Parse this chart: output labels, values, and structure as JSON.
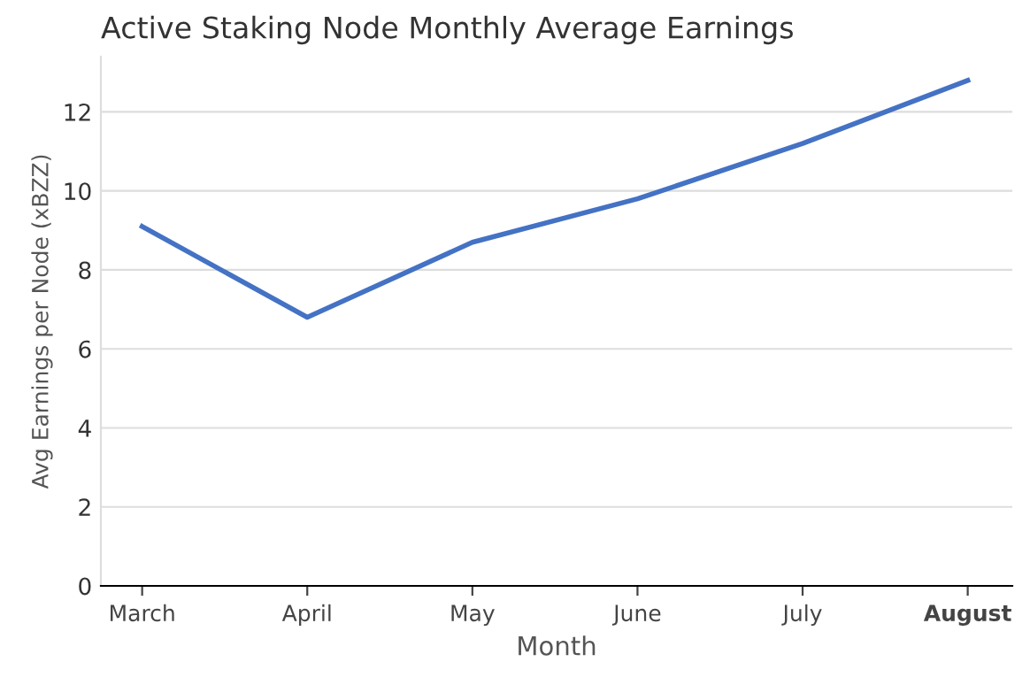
{
  "chart_data": {
    "type": "line",
    "title": "Active Staking Node Monthly Average Earnings",
    "xlabel": "Month",
    "ylabel": "Avg Earnings per Node (xBZZ)",
    "categories": [
      "March",
      "April",
      "May",
      "June",
      "July",
      "August"
    ],
    "series": [
      {
        "color": "#4472c4",
        "values": [
          9.1,
          6.8,
          8.7,
          9.8,
          11.2,
          12.8
        ]
      }
    ],
    "ylim": [
      0,
      13.4
    ],
    "yticks": [
      0,
      2,
      4,
      6,
      8,
      10,
      12
    ],
    "grid": "y",
    "line_style": "solid",
    "marker": "none"
  }
}
